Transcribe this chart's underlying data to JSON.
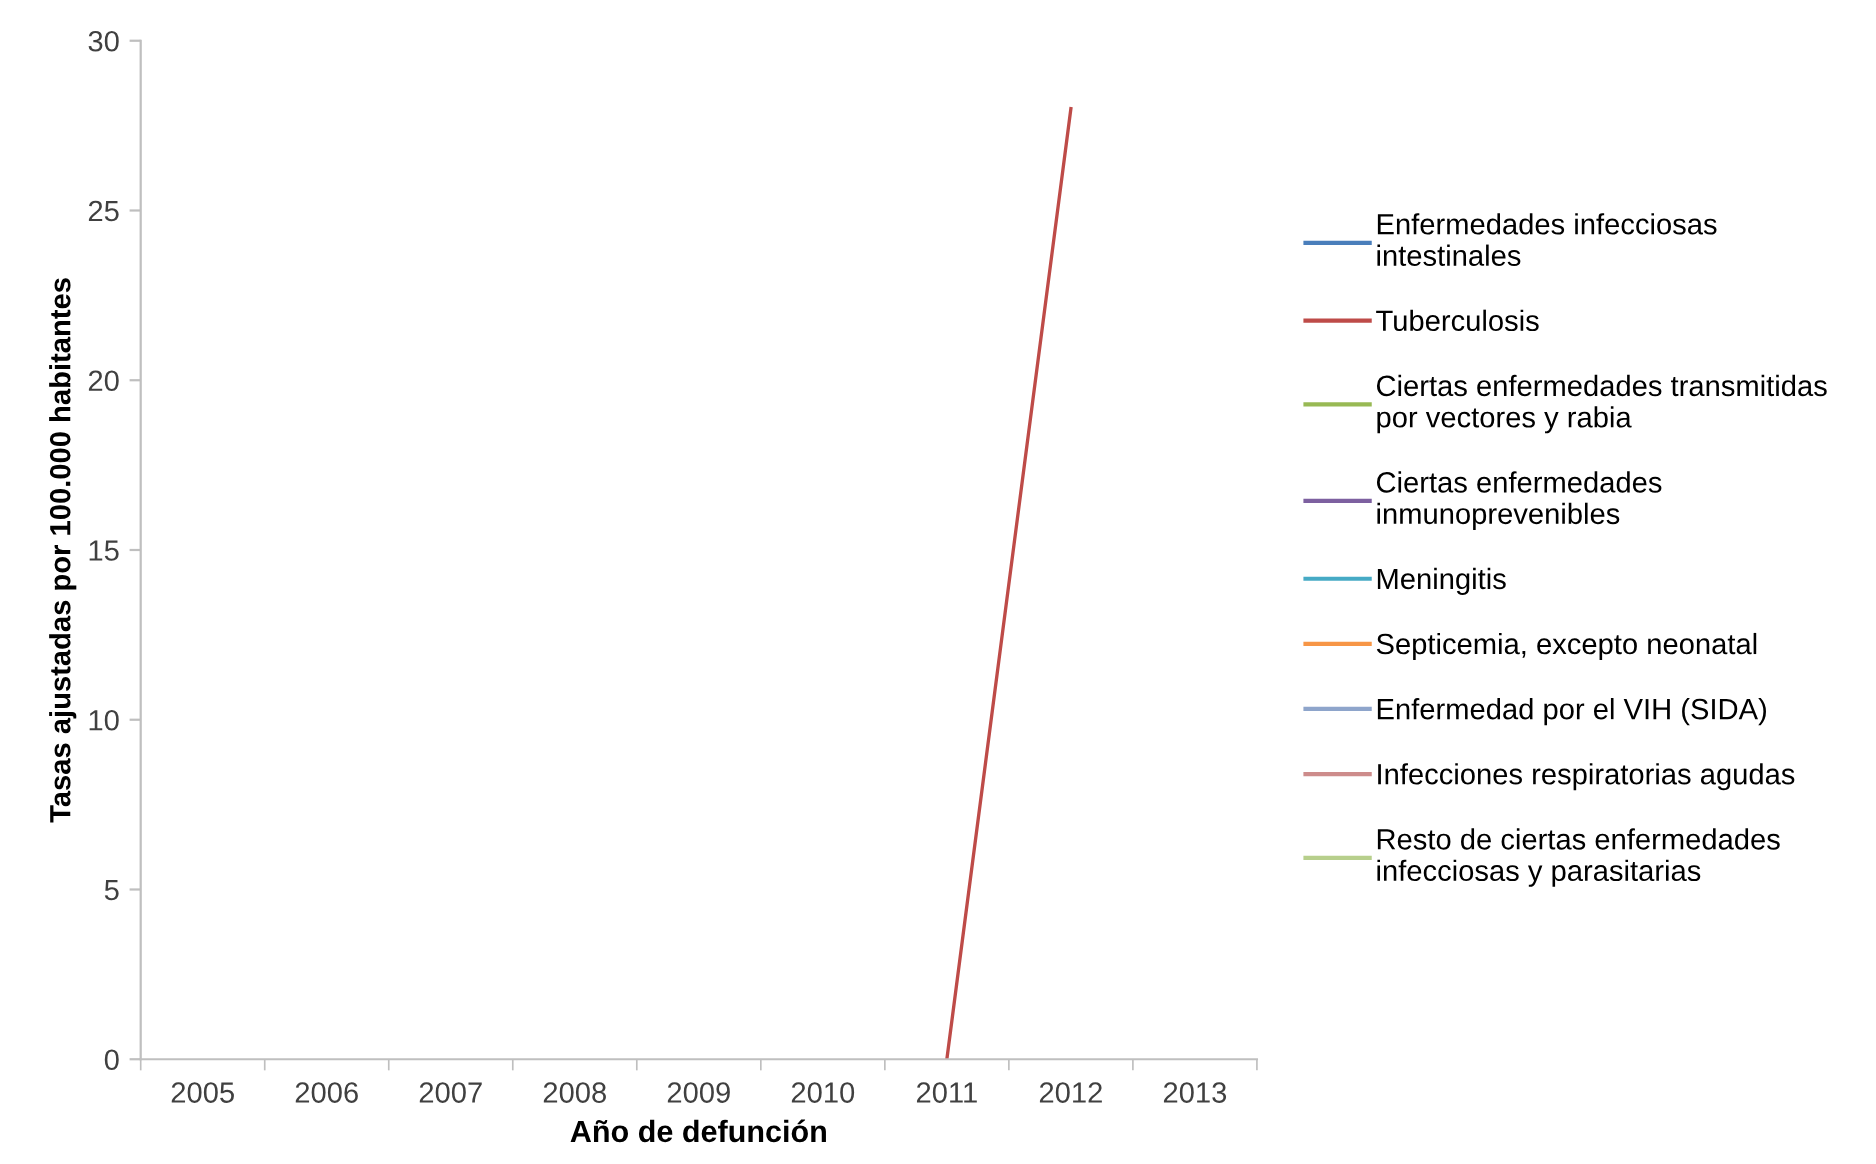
{
  "chart_data": {
    "type": "line",
    "xlabel": "Año de defunción",
    "ylabel": "Tasas ajustadas por 100.000 habitantes",
    "categories": [
      "2005",
      "2006",
      "2007",
      "2008",
      "2009",
      "2010",
      "2011",
      "2012",
      "2013"
    ],
    "ylim": [
      0,
      30
    ],
    "yticks": [
      0,
      5,
      10,
      15,
      20,
      25,
      30
    ],
    "grid": false,
    "legend": "right",
    "marker": "none",
    "line_style": "solid",
    "series": [
      {
        "name": "Enfermedades infecciosas intestinales",
        "color": "#4a7ebb",
        "values": [
          null,
          null,
          null,
          null,
          null,
          null,
          null,
          null,
          null
        ]
      },
      {
        "name": "Tuberculosis",
        "color": "#be4b48",
        "values": [
          null,
          null,
          null,
          null,
          null,
          null,
          0,
          28,
          null
        ]
      },
      {
        "name": "Ciertas enfermedades transmitidas por vectores y rabia",
        "color": "#98b954",
        "values": [
          null,
          null,
          null,
          null,
          null,
          null,
          null,
          null,
          null
        ]
      },
      {
        "name": "Ciertas enfermedades inmunoprevenibles",
        "color": "#7d60a0",
        "values": [
          null,
          null,
          null,
          null,
          null,
          null,
          null,
          null,
          null
        ]
      },
      {
        "name": "Meningitis",
        "color": "#46aac5",
        "values": [
          null,
          null,
          null,
          null,
          null,
          null,
          null,
          null,
          null
        ]
      },
      {
        "name": "Septicemia, excepto neonatal",
        "color": "#f79646",
        "values": [
          null,
          null,
          null,
          null,
          null,
          null,
          null,
          null,
          null
        ]
      },
      {
        "name": "Enfermedad por el VIH (SIDA)",
        "color": "#8ea5cb",
        "values": [
          null,
          null,
          null,
          null,
          null,
          null,
          null,
          null,
          null
        ]
      },
      {
        "name": "Infecciones respiratorias agudas",
        "color": "#cd8c8b",
        "values": [
          null,
          null,
          null,
          null,
          null,
          null,
          null,
          null,
          null
        ]
      },
      {
        "name": "Resto de ciertas enfermedades infecciosas y parasitarias",
        "color": "#b7cf8c",
        "values": [
          null,
          null,
          null,
          null,
          null,
          null,
          null,
          null,
          null
        ]
      }
    ]
  }
}
